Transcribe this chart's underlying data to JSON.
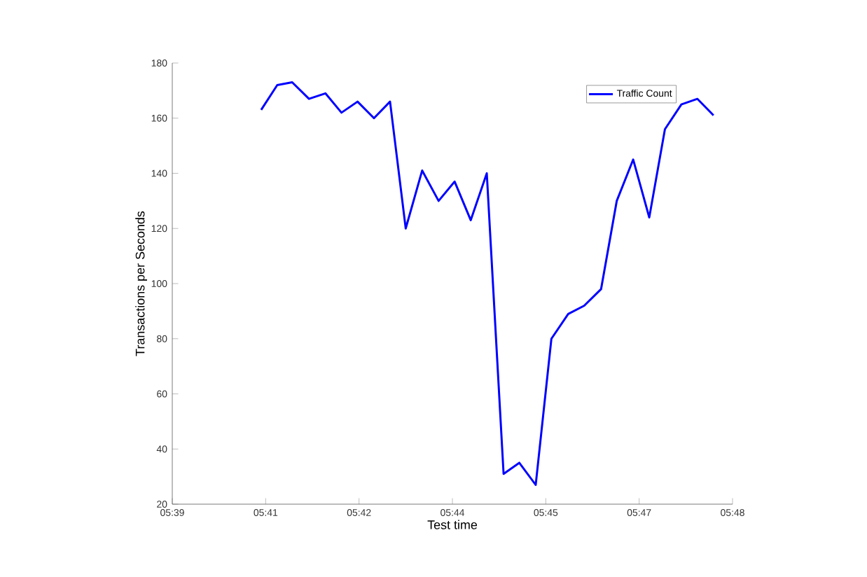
{
  "chart_data": {
    "type": "line",
    "xlabel": "Test time",
    "ylabel": "Transactions per Seconds",
    "x": [
      5.6738,
      5.6781,
      5.6821,
      5.6866,
      5.691,
      5.6953,
      5.6996,
      5.704,
      5.7083,
      5.7125,
      5.7169,
      5.7213,
      5.7256,
      5.7299,
      5.7342,
      5.7387,
      5.7429,
      5.7473,
      5.7515,
      5.756,
      5.7603,
      5.7648,
      5.769,
      5.7734,
      5.7777,
      5.7819,
      5.7863,
      5.7906,
      5.7949
    ],
    "series": [
      {
        "name": "Traffic Count",
        "color": "#0000ff",
        "values": [
          163,
          172,
          173,
          167,
          169,
          162,
          166,
          160,
          166,
          120,
          141,
          130,
          137,
          123,
          140,
          31,
          35,
          27,
          80,
          89,
          92,
          98,
          130,
          145,
          124,
          156,
          165,
          167,
          161
        ]
      }
    ],
    "xlim": [
      5.65,
      5.8
    ],
    "xticks": [
      {
        "value": 5.65,
        "label": "05:39"
      },
      {
        "value": 5.675,
        "label": "05:41"
      },
      {
        "value": 5.7,
        "label": "05:42"
      },
      {
        "value": 5.725,
        "label": "05:44"
      },
      {
        "value": 5.75,
        "label": "05:45"
      },
      {
        "value": 5.775,
        "label": "05:47"
      },
      {
        "value": 5.8,
        "label": "05:48"
      }
    ],
    "ylim": [
      20,
      180
    ],
    "yticks": [
      20,
      40,
      60,
      80,
      100,
      120,
      140,
      160,
      180
    ],
    "legend": "top right",
    "grid": false,
    "marker": "none",
    "line_style": "solid"
  }
}
